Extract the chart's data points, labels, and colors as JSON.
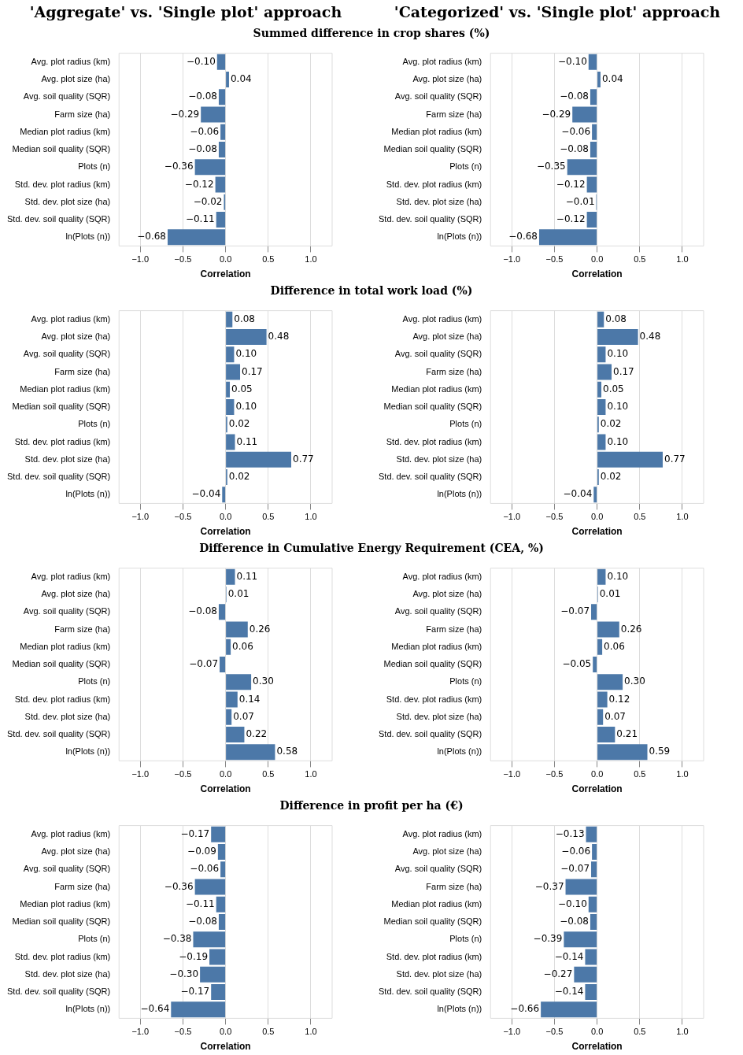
{
  "chart_data": [
    {
      "type": "bar",
      "orientation": "horizontal",
      "title": "'Aggregate' vs. 'Single plot' approach",
      "subtitle": "Summed difference in crop shares (%)",
      "xlabel": "Correlation",
      "categories": [
        "Avg. plot radius (km)",
        "Avg. plot size (ha)",
        "Avg. soil quality (SQR)",
        "Farm size (ha)",
        "Median plot radius (km)",
        "Median soil quality (SQR)",
        "Plots (n)",
        "Std. dev. plot radius (km)",
        "Std. dev. plot size (ha)",
        "Std. dev. soil quality (SQR)",
        "ln(Plots (n))"
      ],
      "color": "#4c78a8",
      "values": [
        -0.1,
        0.04,
        -0.08,
        -0.29,
        -0.06,
        -0.08,
        -0.36,
        -0.12,
        -0.02,
        -0.11,
        -0.68
      ],
      "value_labels": [
        "−0.10",
        "0.04",
        "−0.08",
        "−0.29",
        "−0.06",
        "−0.08",
        "−0.36",
        "−0.12",
        "−0.02",
        "−0.11",
        "−0.68"
      ],
      "xlim": [
        -1.25,
        1.25
      ],
      "xticks": [
        {
          "value": -1,
          "label": "−1.0"
        },
        {
          "value": -0.5,
          "label": "−0.5"
        },
        {
          "value": 0,
          "label": "0.0"
        },
        {
          "value": 0.5,
          "label": "0.5"
        },
        {
          "value": 1,
          "label": "1.0"
        }
      ],
      "grid": "x"
    },
    {
      "type": "bar",
      "orientation": "horizontal",
      "title": "'Categorized' vs. 'Single plot' approach",
      "xlabel": "Correlation",
      "categories": [
        "Avg. plot radius (km)",
        "Avg. plot size (ha)",
        "Avg. soil quality (SQR)",
        "Farm size (ha)",
        "Median plot radius (km)",
        "Median soil quality (SQR)",
        "Plots (n)",
        "Std. dev. plot radius (km)",
        "Std. dev. plot size (ha)",
        "Std. dev. soil quality (SQR)",
        "ln(Plots (n))"
      ],
      "color": "#4c78a8",
      "values": [
        -0.1,
        0.04,
        -0.08,
        -0.29,
        -0.06,
        -0.08,
        -0.35,
        -0.12,
        -0.01,
        -0.12,
        -0.68
      ],
      "value_labels": [
        "−0.10",
        "0.04",
        "−0.08",
        "−0.29",
        "−0.06",
        "−0.08",
        "−0.35",
        "−0.12",
        "−0.01",
        "−0.12",
        "−0.68"
      ],
      "xlim": [
        -1.25,
        1.25
      ],
      "xticks": [
        {
          "value": -1,
          "label": "−1.0"
        },
        {
          "value": -0.5,
          "label": "−0.5"
        },
        {
          "value": 0,
          "label": "0.0"
        },
        {
          "value": 0.5,
          "label": "0.5"
        },
        {
          "value": 1,
          "label": "1.0"
        }
      ],
      "grid": "x"
    },
    {
      "type": "bar",
      "orientation": "horizontal",
      "subtitle": "Difference in total work load (%)",
      "xlabel": "Correlation",
      "categories": [
        "Avg. plot radius (km)",
        "Avg. plot size (ha)",
        "Avg. soil quality (SQR)",
        "Farm size (ha)",
        "Median plot radius (km)",
        "Median soil quality (SQR)",
        "Plots (n)",
        "Std. dev. plot radius (km)",
        "Std. dev. plot size (ha)",
        "Std. dev. soil quality (SQR)",
        "ln(Plots (n))"
      ],
      "color": "#4c78a8",
      "values": [
        0.08,
        0.48,
        0.1,
        0.17,
        0.05,
        0.1,
        0.02,
        0.11,
        0.77,
        0.02,
        -0.04
      ],
      "value_labels": [
        "0.08",
        "0.48",
        "0.10",
        "0.17",
        "0.05",
        "0.10",
        "0.02",
        "0.11",
        "0.77",
        "0.02",
        "−0.04"
      ],
      "xlim": [
        -1.25,
        1.25
      ],
      "xticks": [
        {
          "value": -1,
          "label": "−1.0"
        },
        {
          "value": -0.5,
          "label": "−0.5"
        },
        {
          "value": 0,
          "label": "0.0"
        },
        {
          "value": 0.5,
          "label": "0.5"
        },
        {
          "value": 1,
          "label": "1.0"
        }
      ],
      "grid": "x"
    },
    {
      "type": "bar",
      "orientation": "horizontal",
      "xlabel": "Correlation",
      "categories": [
        "Avg. plot radius (km)",
        "Avg. plot size (ha)",
        "Avg. soil quality (SQR)",
        "Farm size (ha)",
        "Median plot radius (km)",
        "Median soil quality (SQR)",
        "Plots (n)",
        "Std. dev. plot radius (km)",
        "Std. dev. plot size (ha)",
        "Std. dev. soil quality (SQR)",
        "ln(Plots (n))"
      ],
      "color": "#4c78a8",
      "values": [
        0.08,
        0.48,
        0.1,
        0.17,
        0.05,
        0.1,
        0.02,
        0.1,
        0.77,
        0.02,
        -0.04
      ],
      "value_labels": [
        "0.08",
        "0.48",
        "0.10",
        "0.17",
        "0.05",
        "0.10",
        "0.02",
        "0.10",
        "0.77",
        "0.02",
        "−0.04"
      ],
      "xlim": [
        -1.25,
        1.25
      ],
      "xticks": [
        {
          "value": -1,
          "label": "−1.0"
        },
        {
          "value": -0.5,
          "label": "−0.5"
        },
        {
          "value": 0,
          "label": "0.0"
        },
        {
          "value": 0.5,
          "label": "0.5"
        },
        {
          "value": 1,
          "label": "1.0"
        }
      ],
      "grid": "x"
    },
    {
      "type": "bar",
      "orientation": "horizontal",
      "subtitle": "Difference in Cumulative Energy Requirement (CEA, %)",
      "xlabel": "Correlation",
      "categories": [
        "Avg. plot radius (km)",
        "Avg. plot size (ha)",
        "Avg. soil quality (SQR)",
        "Farm size (ha)",
        "Median plot radius (km)",
        "Median soil quality (SQR)",
        "Plots (n)",
        "Std. dev. plot radius (km)",
        "Std. dev. plot size (ha)",
        "Std. dev. soil quality (SQR)",
        "ln(Plots (n))"
      ],
      "color": "#4c78a8",
      "values": [
        0.11,
        0.01,
        -0.08,
        0.26,
        0.06,
        -0.07,
        0.3,
        0.14,
        0.07,
        0.22,
        0.58
      ],
      "value_labels": [
        "0.11",
        "0.01",
        "−0.08",
        "0.26",
        "0.06",
        "−0.07",
        "0.30",
        "0.14",
        "0.07",
        "0.22",
        "0.58"
      ],
      "xlim": [
        -1.25,
        1.25
      ],
      "xticks": [
        {
          "value": -1,
          "label": "−1.0"
        },
        {
          "value": -0.5,
          "label": "−0.5"
        },
        {
          "value": 0,
          "label": "0.0"
        },
        {
          "value": 0.5,
          "label": "0.5"
        },
        {
          "value": 1,
          "label": "1.0"
        }
      ],
      "grid": "x"
    },
    {
      "type": "bar",
      "orientation": "horizontal",
      "xlabel": "Correlation",
      "categories": [
        "Avg. plot radius (km)",
        "Avg. plot size (ha)",
        "Avg. soil quality (SQR)",
        "Farm size (ha)",
        "Median plot radius (km)",
        "Median soil quality (SQR)",
        "Plots (n)",
        "Std. dev. plot radius (km)",
        "Std. dev. plot size (ha)",
        "Std. dev. soil quality (SQR)",
        "ln(Plots (n))"
      ],
      "color": "#4c78a8",
      "values": [
        0.1,
        0.01,
        -0.07,
        0.26,
        0.06,
        -0.05,
        0.3,
        0.12,
        0.07,
        0.21,
        0.59
      ],
      "value_labels": [
        "0.10",
        "0.01",
        "−0.07",
        "0.26",
        "0.06",
        "−0.05",
        "0.30",
        "0.12",
        "0.07",
        "0.21",
        "0.59"
      ],
      "xlim": [
        -1.25,
        1.25
      ],
      "xticks": [
        {
          "value": -1,
          "label": "−1.0"
        },
        {
          "value": -0.5,
          "label": "−0.5"
        },
        {
          "value": 0,
          "label": "0.0"
        },
        {
          "value": 0.5,
          "label": "0.5"
        },
        {
          "value": 1,
          "label": "1.0"
        }
      ],
      "grid": "x"
    },
    {
      "type": "bar",
      "orientation": "horizontal",
      "subtitle": "Difference in profit per ha (€)",
      "xlabel": "Correlation",
      "categories": [
        "Avg. plot radius (km)",
        "Avg. plot size (ha)",
        "Avg. soil quality (SQR)",
        "Farm size (ha)",
        "Median plot radius (km)",
        "Median soil quality (SQR)",
        "Plots (n)",
        "Std. dev. plot radius (km)",
        "Std. dev. plot size (ha)",
        "Std. dev. soil quality (SQR)",
        "ln(Plots (n))"
      ],
      "color": "#4c78a8",
      "values": [
        -0.17,
        -0.09,
        -0.06,
        -0.36,
        -0.11,
        -0.08,
        -0.38,
        -0.19,
        -0.3,
        -0.17,
        -0.64
      ],
      "value_labels": [
        "−0.17",
        "−0.09",
        "−0.06",
        "−0.36",
        "−0.11",
        "−0.08",
        "−0.38",
        "−0.19",
        "−0.30",
        "−0.17",
        "−0.64"
      ],
      "xlim": [
        -1.25,
        1.25
      ],
      "xticks": [
        {
          "value": -1,
          "label": "−1.0"
        },
        {
          "value": -0.5,
          "label": "−0.5"
        },
        {
          "value": 0,
          "label": "0.0"
        },
        {
          "value": 0.5,
          "label": "0.5"
        },
        {
          "value": 1,
          "label": "1.0"
        }
      ],
      "grid": "x"
    },
    {
      "type": "bar",
      "orientation": "horizontal",
      "xlabel": "Correlation",
      "categories": [
        "Avg. plot radius (km)",
        "Avg. plot size (ha)",
        "Avg. soil quality (SQR)",
        "Farm size (ha)",
        "Median plot radius (km)",
        "Median soil quality (SQR)",
        "Plots (n)",
        "Std. dev. plot radius (km)",
        "Std. dev. plot size (ha)",
        "Std. dev. soil quality (SQR)",
        "ln(Plots (n))"
      ],
      "color": "#4c78a8",
      "values": [
        -0.13,
        -0.06,
        -0.07,
        -0.37,
        -0.1,
        -0.08,
        -0.39,
        -0.14,
        -0.27,
        -0.14,
        -0.66
      ],
      "value_labels": [
        "−0.13",
        "−0.06",
        "−0.07",
        "−0.37",
        "−0.10",
        "−0.08",
        "−0.39",
        "−0.14",
        "−0.27",
        "−0.14",
        "−0.66"
      ],
      "xlim": [
        -1.25,
        1.25
      ],
      "xticks": [
        {
          "value": -1,
          "label": "−1.0"
        },
        {
          "value": -0.5,
          "label": "−0.5"
        },
        {
          "value": 0,
          "label": "0.0"
        },
        {
          "value": 0.5,
          "label": "0.5"
        },
        {
          "value": 1,
          "label": "1.0"
        }
      ],
      "grid": "x"
    }
  ]
}
